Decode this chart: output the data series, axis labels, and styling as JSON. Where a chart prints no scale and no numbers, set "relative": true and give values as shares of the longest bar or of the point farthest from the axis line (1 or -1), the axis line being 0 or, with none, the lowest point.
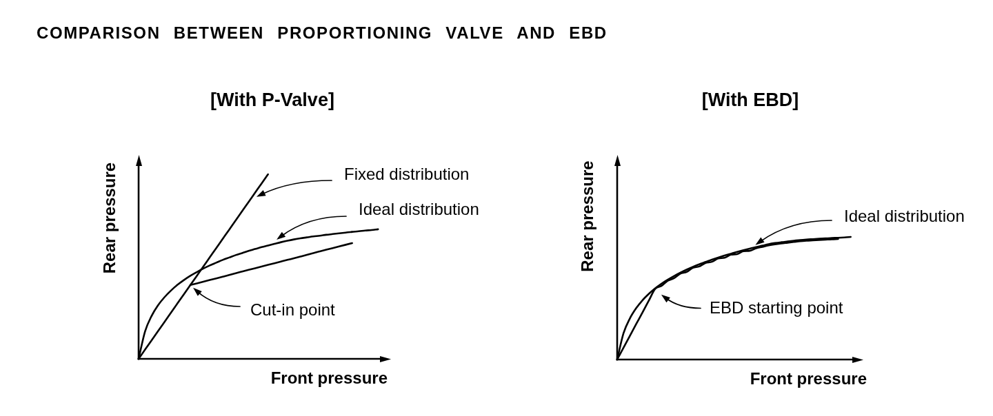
{
  "chart_data": [
    {
      "type": "line",
      "title": "COMPARISON BETWEEN PROPORTIONING VALVE AND EBD",
      "subtitle": "[With P-Valve]",
      "xlabel": "Front pressure",
      "ylabel": "Rear pressure",
      "relative": true,
      "categories": [
        null,
        null,
        null,
        null,
        null,
        null,
        null,
        null,
        null,
        null,
        null,
        null,
        null,
        null,
        null,
        null,
        null,
        null,
        null,
        null,
        null,
        null,
        null,
        null,
        null,
        null,
        null,
        null,
        null,
        null,
        null,
        null,
        null,
        null,
        null,
        null,
        null,
        null,
        null,
        null
      ],
      "series": [
        {
          "name": "Fixed distribution",
          "color": "#000000",
          "values": [
            0,
            0.05,
            0.1,
            0.15,
            0.2,
            0.25,
            0.3,
            0.35,
            0.4,
            0.45,
            0.5,
            0.55,
            0.6,
            0.65,
            0.7,
            0.75,
            0.8,
            0.85,
            0.9,
            0.95,
            1,
            null,
            null,
            null,
            null,
            null,
            null,
            null,
            null,
            null,
            null,
            null,
            null,
            null,
            null,
            null,
            null,
            null,
            null,
            null
          ]
        },
        {
          "name": "Ideal distribution",
          "color": "#000000",
          "values": [
            0,
            0.149,
            0.232,
            0.29,
            0.334,
            0.37,
            0.401,
            0.427,
            0.45,
            0.47,
            0.489,
            0.506,
            0.521,
            0.536,
            0.549,
            0.562,
            0.573,
            0.585,
            0.595,
            0.605,
            0.614,
            0.623,
            0.632,
            0.64,
            0.647,
            0.653,
            0.658,
            0.663,
            0.667,
            0.672,
            0.676,
            0.68,
            0.684,
            0.688,
            0.691,
            0.695,
            0.698,
            0.702,
            null,
            null
          ]
        },
        {
          "color": "#000000",
          "values": [
            null,
            null,
            null,
            null,
            null,
            null,
            null,
            null,
            0.4,
            0.409,
            0.418,
            0.427,
            0.436,
            0.445,
            0.454,
            0.464,
            0.473,
            0.482,
            0.491,
            0.5,
            0.509,
            0.518,
            0.527,
            0.536,
            0.545,
            0.554,
            0.563,
            0.573,
            0.582,
            0.591,
            0.6,
            0.609,
            0.618,
            0.627,
            null,
            null,
            null,
            null,
            null,
            null
          ]
        }
      ],
      "annotations": [
        "Cut-in point"
      ]
    },
    {
      "type": "line",
      "subtitle": "[With EBD]",
      "xlabel": "Front pressure",
      "ylabel": "Rear pressure",
      "relative": true,
      "categories": [
        null,
        null,
        null,
        null,
        null,
        null,
        null,
        null,
        null,
        null,
        null,
        null,
        null,
        null,
        null,
        null,
        null,
        null,
        null,
        null,
        null,
        null,
        null,
        null,
        null,
        null,
        null,
        null,
        null,
        null,
        null,
        null,
        null,
        null,
        null,
        null,
        null,
        null,
        null,
        null
      ],
      "series": [
        {
          "name": "Ideal distribution",
          "color": "#000000",
          "values": [
            0,
            0.214,
            0.334,
            0.418,
            0.483,
            0.535,
            0.58,
            0.618,
            0.651,
            0.681,
            0.708,
            0.733,
            0.756,
            0.777,
            0.796,
            0.815,
            0.832,
            0.848,
            0.863,
            0.878,
            0.892,
            0.905,
            0.917,
            0.929,
            0.941,
            0.95,
            0.957,
            0.963,
            0.969,
            0.975,
            0.979,
            0.982,
            0.985,
            0.988,
            0.991,
            0.993,
            0.996,
            1,
            null,
            null
          ]
        },
        {
          "color": "#000000",
          "values": [
            0,
            0.096,
            0.192,
            0.288,
            0.383,
            0.479,
            0.575,
            0.6,
            0.643,
            0.663,
            0.7,
            0.715,
            0.748,
            0.759,
            0.788,
            0.797,
            0.824,
            0.83,
            0.855,
            0.86,
            0.884,
            0.887,
            0.907,
            0.919,
            0.931,
            0.94,
            0.947,
            0.953,
            0.959,
            0.965,
            0.969,
            0.972,
            0.975,
            0.978,
            0.981,
            0.983,
            null,
            null,
            null,
            null
          ]
        }
      ],
      "annotations": [
        "EBD starting point"
      ]
    }
  ]
}
